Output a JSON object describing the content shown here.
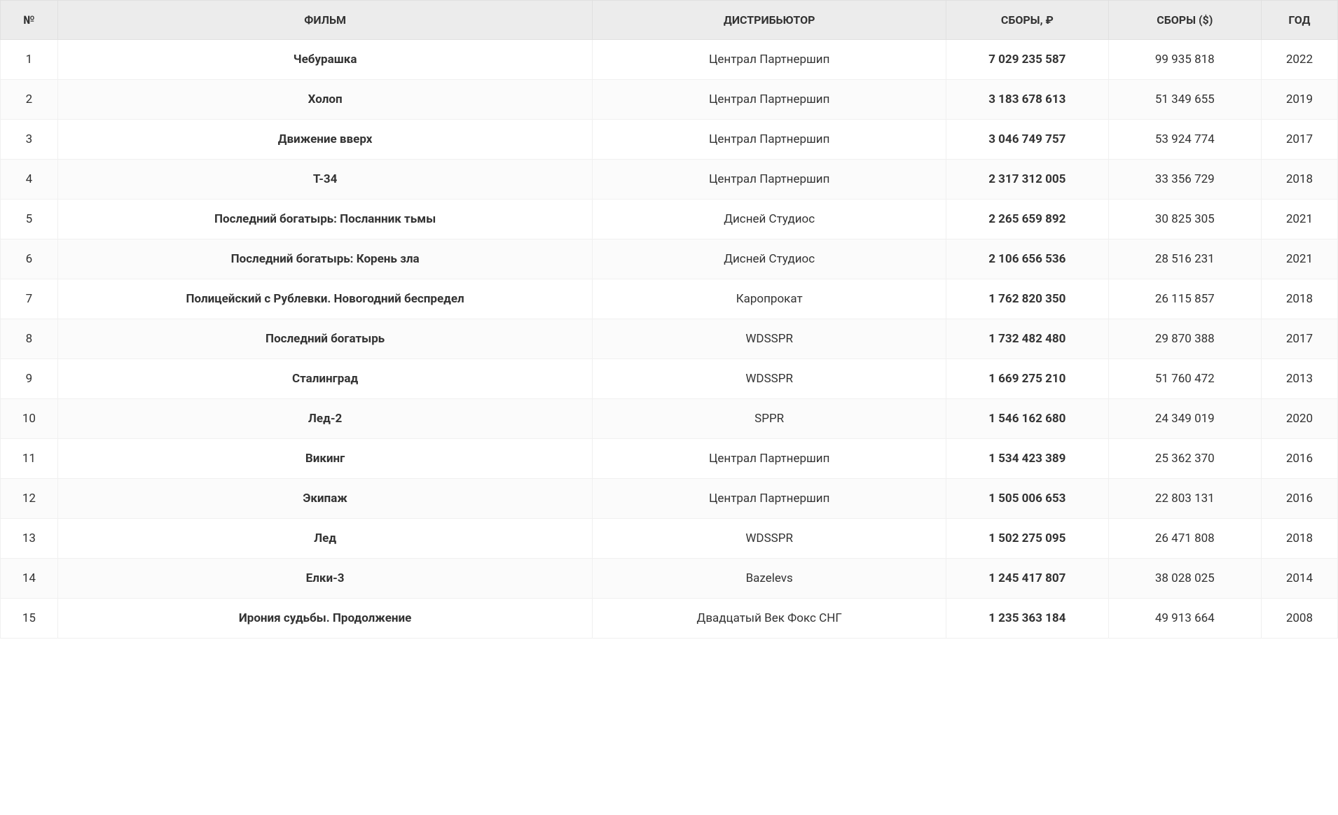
{
  "table": {
    "columns": {
      "num": "№",
      "film": "ФИЛЬМ",
      "distributor": "ДИСТРИБЬЮТОР",
      "rub": "СБОРЫ, ₽",
      "usd": "СБОРЫ ($)",
      "year": "ГОД"
    },
    "rows": [
      {
        "num": "1",
        "film": "Чебурашка",
        "distributor": "Централ Партнершип",
        "rub": "7 029 235 587",
        "usd": "99 935 818",
        "year": "2022"
      },
      {
        "num": "2",
        "film": "Холоп",
        "distributor": "Централ Партнершип",
        "rub": "3 183 678 613",
        "usd": "51 349 655",
        "year": "2019"
      },
      {
        "num": "3",
        "film": "Движение вверх",
        "distributor": "Централ Партнершип",
        "rub": "3 046 749 757",
        "usd": "53 924 774",
        "year": "2017"
      },
      {
        "num": "4",
        "film": "Т-34",
        "distributor": "Централ Партнершип",
        "rub": "2 317 312 005",
        "usd": "33 356 729",
        "year": "2018"
      },
      {
        "num": "5",
        "film": "Последний богатырь: Посланник тьмы",
        "distributor": "Дисней Студиос",
        "rub": "2 265 659 892",
        "usd": "30 825 305",
        "year": "2021"
      },
      {
        "num": "6",
        "film": "Последний богатырь: Корень зла",
        "distributor": "Дисней Студиос",
        "rub": "2 106 656 536",
        "usd": "28 516 231",
        "year": "2021"
      },
      {
        "num": "7",
        "film": "Полицейский с Рублевки. Новогодний беспредел",
        "distributor": "Каропрокат",
        "rub": "1 762 820 350",
        "usd": "26 115 857",
        "year": "2018"
      },
      {
        "num": "8",
        "film": "Последний богатырь",
        "distributor": "WDSSPR",
        "rub": "1 732 482 480",
        "usd": "29 870 388",
        "year": "2017"
      },
      {
        "num": "9",
        "film": "Сталинград",
        "distributor": "WDSSPR",
        "rub": "1 669 275 210",
        "usd": "51 760 472",
        "year": "2013"
      },
      {
        "num": "10",
        "film": "Лед-2",
        "distributor": "SPPR",
        "rub": "1 546 162 680",
        "usd": "24 349 019",
        "year": "2020"
      },
      {
        "num": "11",
        "film": "Викинг",
        "distributor": "Централ Партнершип",
        "rub": "1 534 423 389",
        "usd": "25 362 370",
        "year": "2016"
      },
      {
        "num": "12",
        "film": "Экипаж",
        "distributor": "Централ Партнершип",
        "rub": "1 505 006 653",
        "usd": "22 803 131",
        "year": "2016"
      },
      {
        "num": "13",
        "film": "Лед",
        "distributor": "WDSSPR",
        "rub": "1 502 275 095",
        "usd": "26 471 808",
        "year": "2018"
      },
      {
        "num": "14",
        "film": "Елки-3",
        "distributor": "Bazelevs",
        "rub": "1 245 417 807",
        "usd": "38 028 025",
        "year": "2014"
      },
      {
        "num": "15",
        "film": "Ирония судьбы. Продолжение",
        "distributor": "Двадцатый Век Фокс СНГ",
        "rub": "1 235 363 184",
        "usd": "49 913 664",
        "year": "2008"
      }
    ],
    "styling": {
      "header_bg": "#ececec",
      "row_odd_bg": "#ffffff",
      "row_even_bg": "#fbfbfb",
      "border_color": "#f0f0f0",
      "header_border_color": "#e0e0e0",
      "text_color": "#333333",
      "header_font_size": 16,
      "cell_font_size": 17,
      "header_font_weight": 700,
      "rub_font_weight": 700,
      "film_font_weight": 700,
      "column_widths": {
        "num": 60,
        "film": 560,
        "distributor": 370,
        "rub": 170,
        "usd": 160,
        "year": 80
      }
    }
  }
}
